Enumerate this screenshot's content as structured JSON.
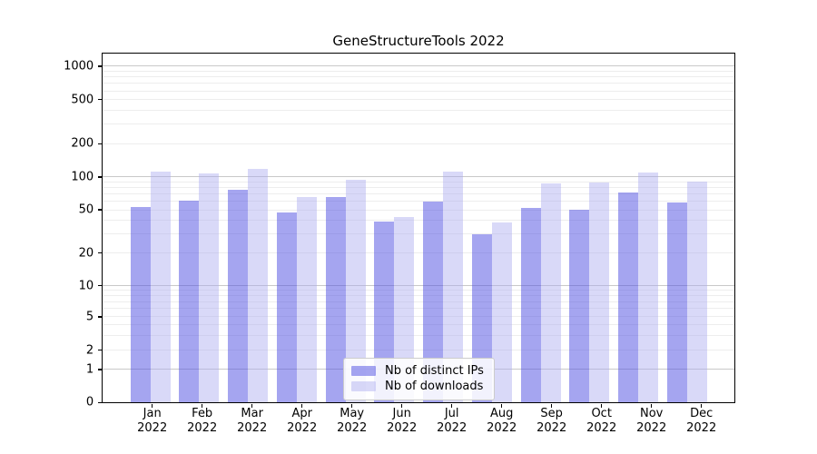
{
  "chart_data": {
    "type": "bar",
    "title": "GeneStructureTools 2022",
    "yscale": "symlog",
    "ylim": [
      0,
      1200
    ],
    "grid": "both",
    "legend_position": "lower center",
    "year": "2022",
    "months": [
      "Jan",
      "Feb",
      "Mar",
      "Apr",
      "May",
      "Jun",
      "Jul",
      "Aug",
      "Sep",
      "Oct",
      "Nov",
      "Dec"
    ],
    "categories": [
      "Jan 2022",
      "Feb 2022",
      "Mar 2022",
      "Apr 2022",
      "May 2022",
      "Jun 2022",
      "Jul 2022",
      "Aug 2022",
      "Sep 2022",
      "Oct 2022",
      "Nov 2022",
      "Dec 2022"
    ],
    "yticks": [
      0,
      1,
      2,
      5,
      10,
      20,
      50,
      100,
      200,
      500,
      1000
    ],
    "colors": {
      "major_grid": "#c9c9c9",
      "minor_grid": "#ededed",
      "axis": "#000000",
      "legend_border": "#cccccc"
    },
    "series": [
      {
        "name": "Nb of distinct IPs",
        "color": "rgba(75,75,225,0.50)",
        "color_on_white": "#a5a5f0",
        "values": [
          53,
          61,
          77,
          47,
          66,
          39,
          59,
          30,
          52,
          50,
          72,
          58
        ]
      },
      {
        "name": "Nb of downloads",
        "color": "rgba(171,171,239,0.45)",
        "color_on_white": "#d9d9f8",
        "values": [
          113,
          107,
          118,
          66,
          95,
          43,
          112,
          38,
          88,
          89,
          109,
          90
        ]
      }
    ]
  }
}
